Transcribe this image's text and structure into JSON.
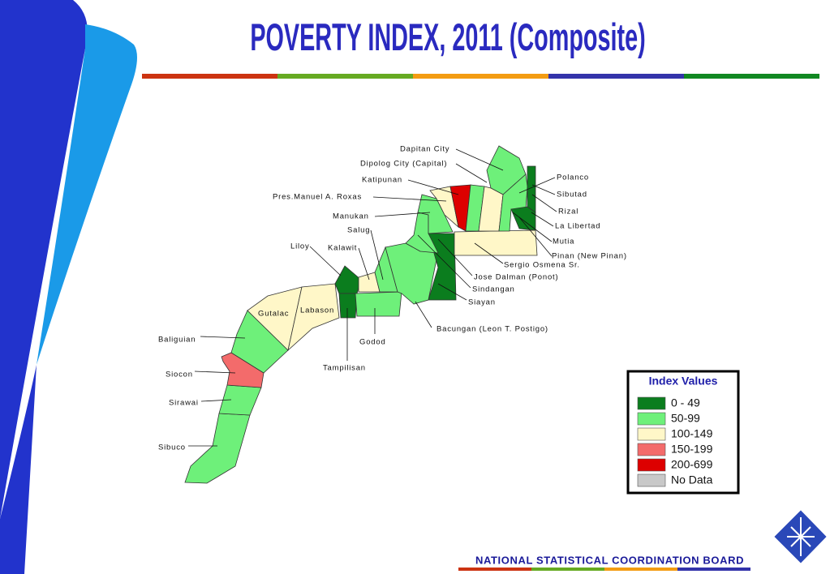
{
  "title": "POVERTY INDEX, 2011 (Composite)",
  "map": {
    "labels": [
      "Dapitan City",
      "Dipolog City (Capital)",
      "Katipunan",
      "Pres.Manuel A. Roxas",
      "Manukan",
      "Salug",
      "Liloy",
      "Kalawit",
      "Gutalac",
      "Labason",
      "Baliguian",
      "Siocon",
      "Sirawai",
      "Sibuco",
      "Tampilisan",
      "Godod",
      "Bacungan (Leon T. Postigo)",
      "Siayan",
      "Sindangan",
      "Jose Dalman (Ponot)",
      "Sergio Osmena Sr.",
      "Pinan (New Pinan)",
      "Mutia",
      "La Libertad",
      "Rizal",
      "Sibutad",
      "Polanco"
    ]
  },
  "legend": {
    "title": "Index Values",
    "items": [
      {
        "label": "0 - 49",
        "color": "#0b7d1e"
      },
      {
        "label": "50-99",
        "color": "#6ef07a"
      },
      {
        "label": "100-149",
        "color": "#fff7c8"
      },
      {
        "label": "150-199",
        "color": "#f36b6b"
      },
      {
        "label": "200-699",
        "color": "#dd0000"
      },
      {
        "label": "No Data",
        "color": "#c8c8c8"
      }
    ]
  },
  "footer": "NATIONAL STATISTICAL COORDINATION BOARD"
}
